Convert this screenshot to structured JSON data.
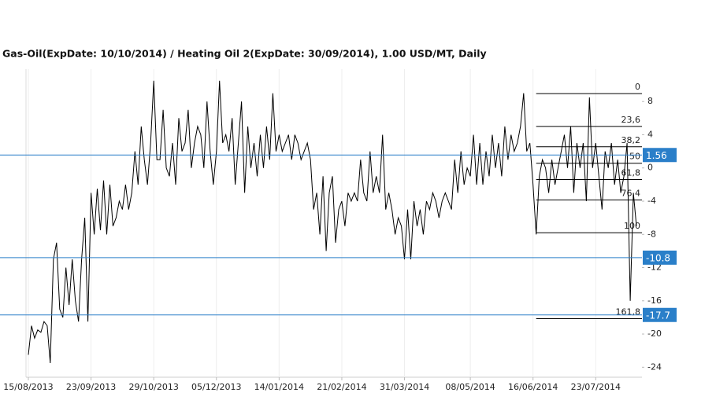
{
  "chart_data": {
    "type": "line",
    "title": "Gas-Oil(ExpDate: 10/10/2014) / Heating Oil 2(ExpDate: 30/09/2014), 1.00 USD/MT, Daily",
    "series": [
      {
        "color": "#000000",
        "values": [
          -22.5,
          -19,
          -20.5,
          -19.5,
          -19.8,
          -18.5,
          -19,
          -23.5,
          -11,
          -9,
          -17,
          -18,
          -12,
          -16.5,
          -11,
          -16,
          -18.5,
          -11,
          -6,
          -18.5,
          -3,
          -8,
          -2.5,
          -7.5,
          -1.5,
          -8,
          -2,
          -7,
          -6,
          -4,
          -5,
          -2,
          -5,
          -3,
          2,
          -2,
          5,
          1,
          -2,
          3,
          10.5,
          1,
          1,
          7,
          0,
          -1,
          3,
          -2,
          6,
          2,
          3,
          7,
          0,
          3,
          5,
          4,
          0,
          8,
          2,
          -2,
          2,
          10.5,
          3,
          4,
          2,
          6,
          -2,
          3,
          8,
          -3,
          5,
          0,
          3,
          -1,
          4,
          0,
          5,
          1,
          9,
          2,
          4,
          2,
          3,
          4,
          1,
          4,
          3,
          1,
          2,
          3,
          1,
          -5,
          -3,
          -8,
          -1,
          -10,
          -3,
          -1,
          -9,
          -5,
          -4,
          -7,
          -3,
          -4,
          -3,
          -4,
          1,
          -3,
          -4,
          2,
          -3,
          -1,
          -3,
          4,
          -5,
          -3,
          -5,
          -8,
          -6,
          -7,
          -11,
          -5,
          -11,
          -4,
          -7,
          -5,
          -8,
          -4,
          -5,
          -3,
          -4,
          -6,
          -4,
          -3,
          -4,
          -5,
          1,
          -3,
          2,
          -2,
          0,
          -1,
          4,
          -2,
          3,
          -2,
          2,
          -1,
          4,
          0,
          3,
          -1,
          5,
          1,
          4,
          2,
          3,
          5,
          9,
          2,
          3,
          -2,
          -8,
          -1,
          1,
          0,
          -3,
          1,
          -2,
          0,
          2,
          4,
          0,
          5,
          -3,
          3,
          0,
          3,
          -4,
          8.5,
          0,
          3,
          -1,
          -5,
          2,
          0,
          3,
          -2,
          1,
          -3,
          -1,
          3,
          -16,
          -3,
          -7
        ]
      }
    ],
    "xlim": [
      -0.75,
      195.75
    ],
    "xticks": [
      {
        "value": 0,
        "label": "15/08/2013"
      },
      {
        "value": 20,
        "label": "23/09/2013"
      },
      {
        "value": 40,
        "label": "29/10/2013"
      },
      {
        "value": 60,
        "label": "05/12/2013"
      },
      {
        "value": 80,
        "label": "14/01/2014"
      },
      {
        "value": 100,
        "label": "21/02/2014"
      },
      {
        "value": 120,
        "label": "31/03/2014"
      },
      {
        "value": 141,
        "label": "08/05/2014"
      },
      {
        "value": 161,
        "label": "16/06/2014"
      },
      {
        "value": 181,
        "label": "23/07/2014"
      }
    ],
    "ylim": [
      -25.2,
      11.9
    ],
    "yticks": [
      8,
      4,
      0,
      -4,
      -8,
      -12,
      -16,
      -20,
      -24
    ],
    "levels": [
      1.56,
      -10.8,
      -17.7
    ],
    "level_color": "#2a7fc9",
    "fibonacci": {
      "start": 162,
      "levels": [
        {
          "value": 8.95,
          "label": "0"
        },
        {
          "value": 5.0,
          "label": "23,6"
        },
        {
          "value": 2.55,
          "label": "38,2"
        },
        {
          "value": 0.57,
          "label": "50"
        },
        {
          "value": -1.4,
          "label": "61,8"
        },
        {
          "value": -3.85,
          "label": "76,4"
        },
        {
          "value": -7.8,
          "label": "100"
        },
        {
          "value": -18.15,
          "label": "161,8"
        }
      ]
    }
  }
}
